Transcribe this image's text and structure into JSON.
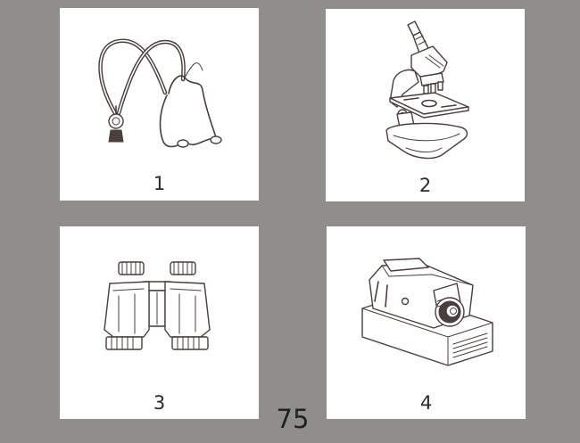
{
  "background_color": "#908e8c",
  "card_color": "#ffffff",
  "ink_color": "#4a3f3c",
  "cards": [
    {
      "number": "1",
      "icon": "stethoscope-icon"
    },
    {
      "number": "2",
      "icon": "microscope-icon"
    },
    {
      "number": "3",
      "icon": "binoculars-icon"
    },
    {
      "number": "4",
      "icon": "slide-projector-icon"
    }
  ],
  "page_number": "75"
}
